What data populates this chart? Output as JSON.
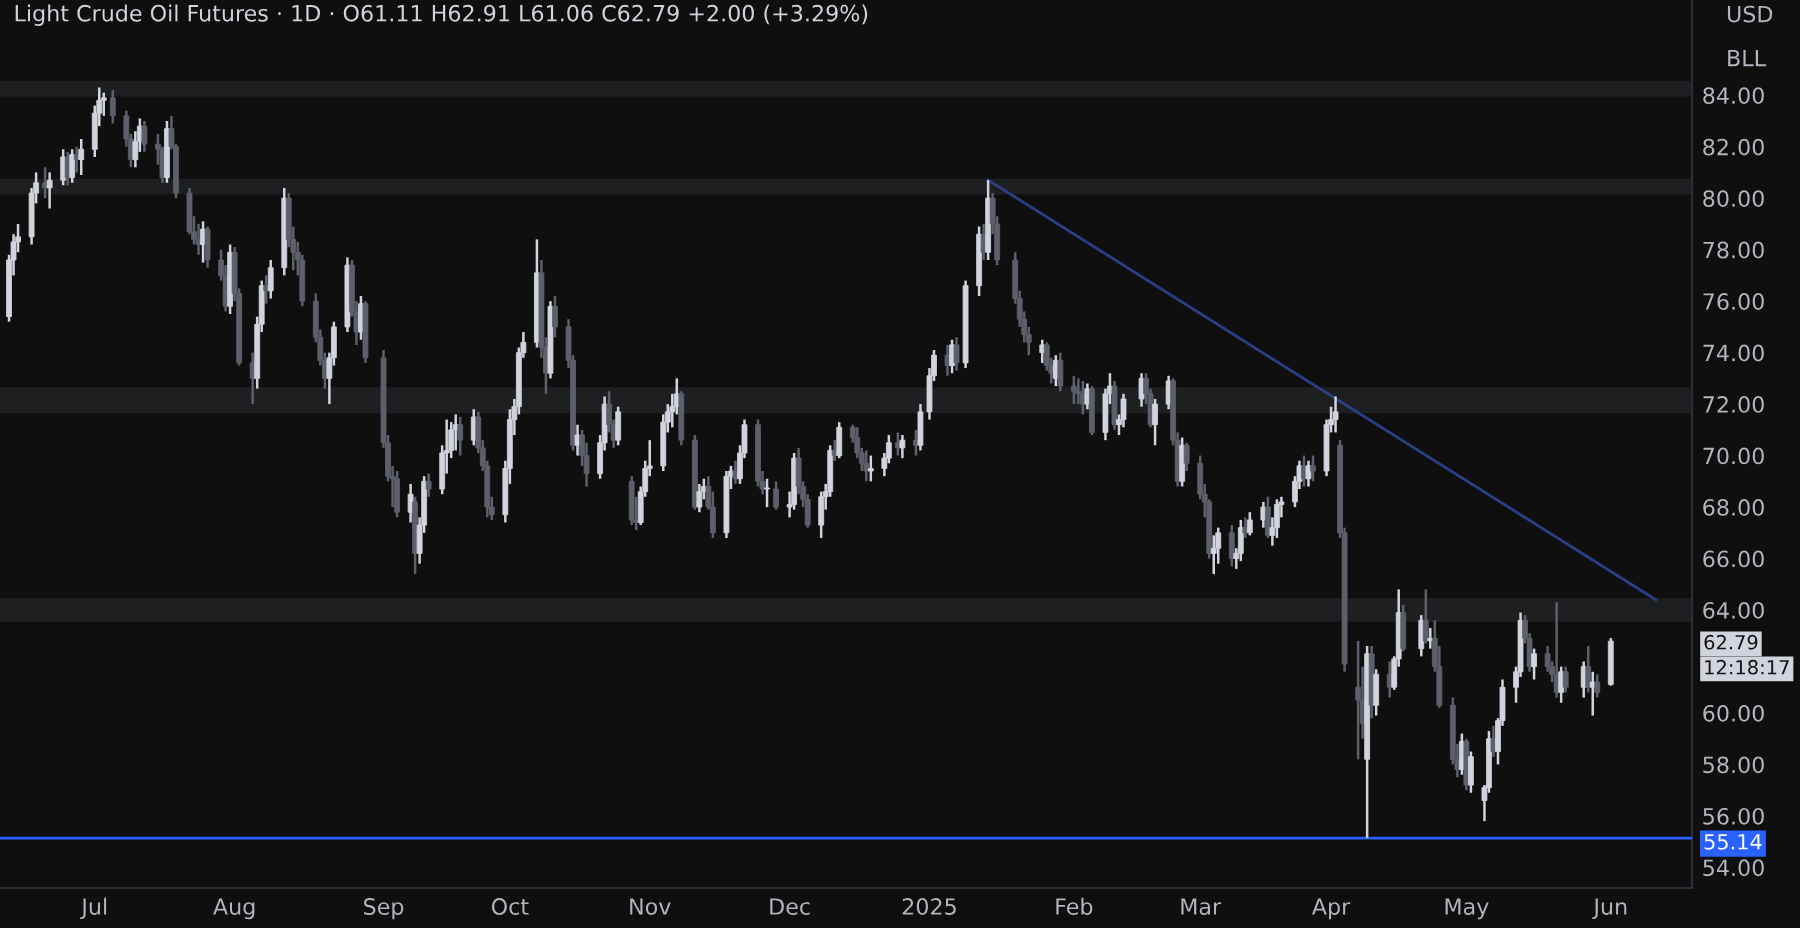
{
  "chart_data": {
    "type": "candlestick",
    "title": "Light Crude Oil Futures · 1D · O61.11 H62.91 L61.06 C62.79 +2.00 (+3.29%)",
    "colors": [
      "#d1d4dc",
      "#d1d4dc",
      "#d1d4dc",
      "#d1d4dc",
      "#d1d4dc",
      "#5d606b",
      "#d1d4dc",
      "#d1d4dc",
      "#5d606b",
      "#d1d4dc",
      "#5d606b",
      "#d1d4dc",
      "#d1d4dc",
      "#d1d4dc",
      "#d1d4dc",
      "#5d606b",
      "#5d606b",
      "#5d606b",
      "#d1d4dc",
      "#d1d4dc",
      "#5d606b",
      "#5d606b",
      "#5d606b",
      "#d1d4dc",
      "#5d606b",
      "#5d606b",
      "#5d606b",
      "#5d606b",
      "#5d606b",
      "#d1d4dc",
      "#5d606b",
      "#5d606b",
      "#5d606b",
      "#d1d4dc",
      "#5d606b",
      "#5d606b",
      "#5d606b",
      "#d1d4dc",
      "#d1d4dc",
      "#5d606b",
      "#d1d4dc",
      "#d1d4dc",
      "#5d606b",
      "#5d606b",
      "#5d606b",
      "#5d606b",
      "#5d606b",
      "#5d606b",
      "#5d606b",
      "#d1d4dc",
      "#d1d4dc",
      "#d1d4dc",
      "#5d606b",
      "#5d606b",
      "#d1d4dc",
      "#5d606b",
      "#5d606b",
      "#5d606b",
      "#5d606b",
      "#5d606b",
      "#d1d4dc",
      "#5d606b",
      "#d1d4dc",
      "#d1d4dc",
      "#5d606b",
      "#d1d4dc",
      "#d1d4dc",
      "#d1d4dc",
      "#d1d4dc",
      "#5d606b",
      "#d1d4dc",
      "#5d606b",
      "#5d606b",
      "#5d606b",
      "#5d606b",
      "#d1d4dc",
      "#d1d4dc",
      "#d1d4dc",
      "#d1d4dc",
      "#d1d4dc",
      "#d1d4dc",
      "#5d606b",
      "#5d606b",
      "#d1d4dc",
      "#5d606b",
      "#5d606b",
      "#5d606b",
      "#d1d4dc",
      "#5d606b",
      "#5d606b",
      "#d1d4dc",
      "#d1d4dc",
      "#5d606b",
      "#5d606b",
      "#d1d4dc",
      "#5d606b",
      "#5d606b",
      "#d1d4dc",
      "#d1d4dc",
      "#d1d4dc",
      "#d1d4dc",
      "#d1d4dc",
      "#d1d4dc",
      "#d1d4dc",
      "#5d606b",
      "#5d606b",
      "#d1d4dc",
      "#d1d4dc",
      "#5d606b",
      "#5d606b",
      "#d1d4dc",
      "#d1d4dc",
      "#5d606b",
      "#d1d4dc",
      "#d1d4dc",
      "#5d606b",
      "#5d606b",
      "#d1d4dc",
      "#5d606b",
      "#d1d4dc",
      "#d1d4dc",
      "#5d606b",
      "#5d606b",
      "#5d606b",
      "#d1d4dc",
      "#d1d4dc",
      "#d1d4dc",
      "#5d606b",
      "#d1d4dc",
      "#5d606b",
      "#5d606b",
      "#5d606b",
      "#5d606b",
      "#d1d4dc",
      "#d1d4dc",
      "#d1d4dc",
      "#5d606b",
      "#d1d4dc",
      "#5d606b",
      "#d1d4dc",
      "#d1d4dc",
      "#d1d4dc",
      "#5d606b",
      "#d1d4dc",
      "#5d606b",
      "#d1d4dc",
      "#d1d4dc",
      "#5d606b",
      "#d1d4dc",
      "#5d606b",
      "#5d606b",
      "#5d606b",
      "#5d606b",
      "#5d606b",
      "#5d606b",
      "#d1d4dc",
      "#5d606b",
      "#5d606b",
      "#d1d4dc",
      "#5d606b",
      "#5d606b",
      "#5d606b",
      "#5d606b",
      "#d1d4dc",
      "#5d606b",
      "#d1d4dc",
      "#d1d4dc",
      "#5d606b",
      "#d1d4dc",
      "#d1d4dc",
      "#d1d4dc",
      "#5d606b",
      "#5d606b",
      "#d1d4dc",
      "#d1d4dc",
      "#5d606b",
      "#5d606b",
      "#d1d4dc",
      "#5d606b",
      "#5d606b",
      "#5d606b",
      "#5d606b",
      "#d1d4dc",
      "#d1d4dc",
      "#5d606b",
      "#d1d4dc",
      "#d1d4dc",
      "#5d606b",
      "#d1d4dc",
      "#d1d4dc",
      "#5d606b",
      "#d1d4dc",
      "#d1d4dc",
      "#d1d4dc",
      "#d1d4dc",
      "#d1d4dc",
      "#5d606b",
      "#d1d4dc",
      "#5d606b",
      "#d1d4dc",
      "#d1d4dc",
      "#d1d4dc",
      "#5d606b",
      "#5d606b",
      "#5d606b",
      "#5d606b",
      "#d1d4dc",
      "#5d606b",
      "#d1d4dc",
      "#5d606b",
      "#d1d4dc",
      "#d1d4dc",
      "#5d606b",
      "#d1d4dc",
      "#5d606b",
      "#d1d4dc",
      "#5d606b",
      "#5d606b",
      "#5d606b",
      "#5d606b",
      "#d1d4dc",
      "#5d606b",
      "#d1d4dc",
      "#d1d4dc",
      "#d1d4dc",
      "#5d606b",
      "#d1d4dc",
      "#d1d4dc",
      "#d1d4dc",
      "#d1d4dc",
      "#5d606b",
      "#5d606b",
      "#d1d4dc",
      "#5d606b",
      "#5d606b",
      "#5d606b",
      "#d1d4dc",
      "#5d606b",
      "#d1d4dc",
      "#5d606b",
      "#d1d4dc",
      "#5d606b",
      "#d1d4dc"
    ],
    "x": [
      "2024-06-12",
      "2024-06-13",
      "2024-06-14",
      "2024-06-17",
      "2024-06-18",
      "2024-06-20",
      "2024-06-21",
      "2024-06-24",
      "2024-06-25",
      "2024-06-26",
      "2024-06-27",
      "2024-06-28",
      "2024-07-01",
      "2024-07-02",
      "2024-07-03",
      "2024-07-05",
      "2024-07-08",
      "2024-07-09",
      "2024-07-10",
      "2024-07-11",
      "2024-07-12",
      "2024-07-15",
      "2024-07-16",
      "2024-07-17",
      "2024-07-18",
      "2024-07-19",
      "2024-07-22",
      "2024-07-23",
      "2024-07-24",
      "2024-07-25",
      "2024-07-26",
      "2024-07-29",
      "2024-07-30",
      "2024-07-31",
      "2024-08-01",
      "2024-08-02",
      "2024-08-05",
      "2024-08-06",
      "2024-08-07",
      "2024-08-08",
      "2024-08-09",
      "2024-08-12",
      "2024-08-13",
      "2024-08-14",
      "2024-08-15",
      "2024-08-16",
      "2024-08-19",
      "2024-08-20",
      "2024-08-21",
      "2024-08-22",
      "2024-08-23",
      "2024-08-26",
      "2024-08-27",
      "2024-08-28",
      "2024-08-29",
      "2024-08-30",
      "2024-09-03",
      "2024-09-04",
      "2024-09-05",
      "2024-09-06",
      "2024-09-09",
      "2024-09-10",
      "2024-09-11",
      "2024-09-12",
      "2024-09-13",
      "2024-09-16",
      "2024-09-17",
      "2024-09-18",
      "2024-09-19",
      "2024-09-20",
      "2024-09-23",
      "2024-09-24",
      "2024-09-25",
      "2024-09-26",
      "2024-09-27",
      "2024-09-30",
      "2024-10-01",
      "2024-10-02",
      "2024-10-03",
      "2024-10-04",
      "2024-10-07",
      "2024-10-08",
      "2024-10-09",
      "2024-10-10",
      "2024-10-11",
      "2024-10-14",
      "2024-10-15",
      "2024-10-16",
      "2024-10-17",
      "2024-10-18",
      "2024-10-21",
      "2024-10-22",
      "2024-10-23",
      "2024-10-24",
      "2024-10-25",
      "2024-10-28",
      "2024-10-29",
      "2024-10-30",
      "2024-10-31",
      "2024-11-01",
      "2024-11-04",
      "2024-11-05",
      "2024-11-06",
      "2024-11-07",
      "2024-11-08",
      "2024-11-11",
      "2024-11-12",
      "2024-11-13",
      "2024-11-14",
      "2024-11-15",
      "2024-11-18",
      "2024-11-19",
      "2024-11-20",
      "2024-11-21",
      "2024-11-22",
      "2024-11-25",
      "2024-11-26",
      "2024-11-27",
      "2024-11-29",
      "2024-12-02",
      "2024-12-03",
      "2024-12-04",
      "2024-12-05",
      "2024-12-06",
      "2024-12-09",
      "2024-12-10",
      "2024-12-11",
      "2024-12-12",
      "2024-12-13",
      "2024-12-16",
      "2024-12-17",
      "2024-12-18",
      "2024-12-19",
      "2024-12-20",
      "2024-12-23",
      "2024-12-24",
      "2024-12-26",
      "2024-12-27",
      "2024-12-30",
      "2024-12-31",
      "2025-01-02",
      "2025-01-03",
      "2025-01-06",
      "2025-01-07",
      "2025-01-08",
      "2025-01-10",
      "2025-01-13",
      "2025-01-14",
      "2025-01-15",
      "2025-01-16",
      "2025-01-17",
      "2025-01-21",
      "2025-01-22",
      "2025-01-23",
      "2025-01-24",
      "2025-01-27",
      "2025-01-28",
      "2025-01-29",
      "2025-01-30",
      "2025-01-31",
      "2025-02-03",
      "2025-02-04",
      "2025-02-05",
      "2025-02-06",
      "2025-02-07",
      "2025-02-10",
      "2025-02-11",
      "2025-02-12",
      "2025-02-13",
      "2025-02-14",
      "2025-02-18",
      "2025-02-19",
      "2025-02-20",
      "2025-02-21",
      "2025-02-24",
      "2025-02-25",
      "2025-02-26",
      "2025-02-27",
      "2025-02-28",
      "2025-03-03",
      "2025-03-04",
      "2025-03-05",
      "2025-03-06",
      "2025-03-07",
      "2025-03-10",
      "2025-03-11",
      "2025-03-12",
      "2025-03-13",
      "2025-03-14",
      "2025-03-17",
      "2025-03-18",
      "2025-03-19",
      "2025-03-20",
      "2025-03-21",
      "2025-03-24",
      "2025-03-25",
      "2025-03-26",
      "2025-03-27",
      "2025-03-28",
      "2025-03-31",
      "2025-04-01",
      "2025-04-02",
      "2025-04-03",
      "2025-04-04",
      "2025-04-07",
      "2025-04-08",
      "2025-04-09",
      "2025-04-10",
      "2025-04-11",
      "2025-04-14",
      "2025-04-15",
      "2025-04-16",
      "2025-04-17",
      "2025-04-21",
      "2025-04-22",
      "2025-04-23",
      "2025-04-24",
      "2025-04-25",
      "2025-04-28",
      "2025-04-29",
      "2025-04-30",
      "2025-05-01",
      "2025-05-02",
      "2025-05-05",
      "2025-05-06",
      "2025-05-07",
      "2025-05-08",
      "2025-05-09",
      "2025-05-12",
      "2025-05-13",
      "2025-05-14",
      "2025-05-15",
      "2025-05-16",
      "2025-05-19",
      "2025-05-20",
      "2025-05-21",
      "2025-05-22",
      "2025-05-23",
      "2025-05-27",
      "2025-05-28",
      "2025-05-29",
      "2025-05-30",
      "2025-06-02"
    ],
    "ohlc": [
      [
        75.4,
        77.8,
        75.2,
        77.6
      ],
      [
        77.6,
        78.6,
        77.0,
        78.3
      ],
      [
        78.3,
        79.0,
        77.9,
        78.5
      ],
      [
        78.5,
        80.4,
        78.2,
        80.2
      ],
      [
        80.2,
        81.0,
        79.8,
        80.6
      ],
      [
        80.6,
        81.2,
        80.0,
        80.4
      ],
      [
        80.4,
        81.0,
        79.6,
        80.7
      ],
      [
        80.7,
        81.9,
        80.5,
        81.6
      ],
      [
        81.6,
        81.8,
        80.5,
        80.8
      ],
      [
        80.8,
        81.9,
        80.6,
        81.7
      ],
      [
        81.7,
        82.0,
        81.0,
        81.5
      ],
      [
        81.5,
        82.3,
        80.9,
        81.9
      ],
      [
        81.9,
        83.6,
        81.6,
        83.3
      ],
      [
        83.3,
        84.3,
        82.8,
        83.8
      ],
      [
        83.8,
        84.1,
        83.2,
        83.9
      ],
      [
        83.9,
        84.2,
        82.9,
        83.2
      ],
      [
        83.2,
        83.4,
        82.0,
        82.3
      ],
      [
        82.3,
        82.5,
        81.2,
        81.5
      ],
      [
        81.5,
        82.6,
        81.2,
        82.2
      ],
      [
        82.2,
        83.1,
        81.8,
        82.8
      ],
      [
        82.8,
        83.0,
        81.8,
        82.1
      ],
      [
        82.1,
        82.5,
        81.3,
        81.9
      ],
      [
        81.9,
        82.0,
        80.6,
        80.8
      ],
      [
        80.8,
        83.0,
        80.6,
        82.7
      ],
      [
        82.7,
        83.2,
        81.9,
        82.0
      ],
      [
        82.0,
        82.1,
        80.0,
        80.2
      ],
      [
        80.2,
        80.4,
        78.6,
        78.7
      ],
      [
        78.7,
        79.3,
        78.2,
        78.4
      ],
      [
        78.4,
        79.0,
        77.8,
        78.2
      ],
      [
        78.2,
        79.1,
        77.5,
        78.8
      ],
      [
        78.8,
        78.9,
        77.3,
        77.6
      ],
      [
        77.6,
        78.0,
        76.8,
        77.0
      ],
      [
        77.0,
        77.4,
        75.6,
        75.8
      ],
      [
        75.8,
        78.2,
        75.5,
        77.9
      ],
      [
        77.9,
        78.1,
        76.0,
        76.3
      ],
      [
        76.3,
        76.5,
        73.5,
        73.6
      ],
      [
        73.6,
        74.0,
        72.0,
        73.0
      ],
      [
        73.0,
        75.4,
        72.6,
        75.1
      ],
      [
        75.1,
        76.8,
        74.8,
        76.6
      ],
      [
        76.6,
        77.0,
        75.9,
        76.4
      ],
      [
        76.4,
        77.6,
        76.1,
        77.3
      ],
      [
        77.3,
        80.4,
        77.0,
        80.0
      ],
      [
        80.0,
        80.2,
        78.1,
        78.4
      ],
      [
        78.4,
        78.9,
        77.2,
        77.9
      ],
      [
        77.9,
        78.3,
        77.0,
        77.6
      ],
      [
        77.6,
        77.8,
        75.8,
        76.0
      ],
      [
        76.0,
        76.3,
        74.4,
        74.6
      ],
      [
        74.6,
        74.9,
        73.5,
        73.7
      ],
      [
        73.7,
        74.0,
        72.6,
        73.0
      ],
      [
        73.0,
        74.0,
        72.0,
        73.8
      ],
      [
        73.8,
        75.2,
        73.5,
        75.0
      ],
      [
        75.0,
        77.7,
        74.8,
        77.4
      ],
      [
        77.4,
        77.6,
        75.4,
        75.6
      ],
      [
        75.6,
        76.0,
        74.3,
        74.8
      ],
      [
        74.8,
        76.2,
        74.5,
        75.9
      ],
      [
        75.9,
        76.0,
        73.6,
        73.8
      ],
      [
        73.8,
        74.1,
        70.3,
        70.5
      ],
      [
        70.5,
        70.8,
        69.0,
        69.2
      ],
      [
        69.2,
        69.6,
        68.0,
        69.1
      ],
      [
        69.1,
        69.4,
        67.6,
        67.8
      ],
      [
        67.8,
        68.9,
        67.4,
        68.5
      ],
      [
        68.2,
        68.4,
        65.4,
        66.2
      ],
      [
        66.2,
        67.6,
        65.8,
        67.3
      ],
      [
        67.3,
        69.2,
        67.0,
        69.0
      ],
      [
        69.0,
        69.3,
        68.4,
        68.7
      ],
      [
        68.7,
        70.4,
        68.5,
        70.1
      ],
      [
        70.1,
        71.4,
        69.3,
        70.2
      ],
      [
        70.2,
        71.3,
        69.9,
        71.0
      ],
      [
        71.0,
        71.6,
        70.2,
        71.2
      ],
      [
        71.2,
        71.5,
        70.0,
        70.6
      ],
      [
        70.6,
        71.8,
        70.4,
        71.5
      ],
      [
        71.5,
        71.7,
        70.1,
        70.3
      ],
      [
        70.3,
        70.6,
        69.4,
        69.6
      ],
      [
        69.6,
        69.8,
        67.6,
        68.0
      ],
      [
        68.0,
        68.4,
        67.5,
        67.7
      ],
      [
        67.7,
        69.8,
        67.4,
        69.5
      ],
      [
        69.5,
        71.8,
        68.9,
        71.4
      ],
      [
        71.4,
        72.2,
        70.8,
        71.9
      ],
      [
        71.9,
        74.2,
        71.6,
        74.0
      ],
      [
        74.0,
        74.8,
        73.8,
        74.4
      ],
      [
        74.4,
        78.4,
        74.2,
        77.1
      ],
      [
        77.1,
        77.6,
        73.8,
        74.2
      ],
      [
        74.2,
        74.6,
        72.4,
        73.2
      ],
      [
        73.2,
        76.0,
        73.0,
        75.8
      ],
      [
        75.8,
        76.2,
        74.6,
        75.0
      ],
      [
        75.0,
        75.3,
        73.4,
        73.7
      ],
      [
        73.7,
        73.9,
        70.2,
        70.4
      ],
      [
        70.4,
        71.2,
        70.0,
        70.8
      ],
      [
        70.8,
        71.0,
        69.6,
        70.0
      ],
      [
        70.0,
        70.5,
        68.8,
        69.3
      ],
      [
        69.3,
        70.8,
        69.1,
        70.5
      ],
      [
        70.5,
        72.3,
        70.2,
        72.0
      ],
      [
        72.0,
        72.5,
        70.9,
        71.2
      ],
      [
        71.2,
        71.4,
        70.3,
        70.6
      ],
      [
        70.6,
        71.9,
        70.4,
        71.7
      ],
      [
        69.0,
        69.2,
        67.3,
        67.5
      ],
      [
        67.5,
        68.4,
        67.1,
        67.4
      ],
      [
        67.4,
        68.8,
        67.3,
        68.6
      ],
      [
        68.6,
        69.8,
        68.4,
        69.5
      ],
      [
        69.5,
        70.6,
        69.2,
        69.6
      ],
      [
        69.6,
        71.6,
        69.4,
        71.3
      ],
      [
        71.3,
        72.0,
        70.9,
        71.7
      ],
      [
        71.7,
        72.4,
        71.1,
        71.9
      ],
      [
        71.9,
        73.0,
        71.6,
        72.4
      ],
      [
        72.4,
        72.5,
        70.4,
        70.6
      ],
      [
        70.6,
        70.8,
        67.9,
        68.0
      ],
      [
        68.0,
        68.9,
        67.8,
        68.6
      ],
      [
        68.6,
        69.1,
        68.3,
        68.8
      ],
      [
        68.8,
        69.2,
        67.9,
        68.0
      ],
      [
        68.0,
        68.6,
        66.8,
        67.0
      ],
      [
        67.0,
        69.4,
        66.8,
        69.2
      ],
      [
        69.2,
        69.6,
        68.7,
        69.4
      ],
      [
        69.4,
        69.8,
        68.9,
        69.1
      ],
      [
        69.1,
        70.4,
        68.9,
        70.1
      ],
      [
        70.1,
        71.4,
        69.9,
        71.2
      ],
      [
        71.2,
        71.4,
        68.8,
        69.0
      ],
      [
        69.0,
        69.4,
        68.5,
        68.7
      ],
      [
        68.7,
        69.1,
        68.0,
        68.7
      ],
      [
        68.7,
        69.0,
        67.9,
        68.0
      ],
      [
        68.0,
        68.6,
        67.6,
        68.1
      ],
      [
        68.1,
        70.1,
        67.9,
        69.9
      ],
      [
        69.9,
        70.3,
        68.5,
        68.8
      ],
      [
        68.8,
        69.0,
        68.0,
        68.3
      ],
      [
        68.3,
        68.5,
        67.2,
        67.3
      ],
      [
        67.3,
        68.6,
        66.8,
        68.4
      ],
      [
        68.4,
        68.9,
        67.9,
        68.6
      ],
      [
        68.6,
        70.4,
        68.4,
        70.2
      ],
      [
        70.2,
        70.6,
        69.8,
        70.0
      ],
      [
        70.0,
        71.3,
        69.9,
        71.1
      ],
      [
        71.1,
        71.2,
        70.5,
        70.7
      ],
      [
        70.7,
        71.1,
        69.9,
        70.1
      ],
      [
        70.1,
        70.3,
        69.4,
        69.7
      ],
      [
        69.7,
        70.2,
        69.0,
        69.4
      ],
      [
        69.4,
        70.0,
        69.0,
        69.5
      ],
      [
        69.5,
        70.1,
        69.2,
        69.9
      ],
      [
        69.9,
        70.8,
        69.7,
        70.5
      ],
      [
        70.5,
        70.9,
        70.0,
        70.3
      ],
      [
        70.3,
        70.8,
        69.9,
        70.6
      ],
      [
        70.6,
        71.0,
        70.0,
        70.4
      ],
      [
        70.4,
        72.0,
        70.2,
        71.7
      ],
      [
        71.7,
        73.4,
        71.4,
        73.1
      ],
      [
        73.1,
        74.1,
        72.9,
        73.9
      ],
      [
        73.9,
        74.3,
        73.1,
        73.5
      ],
      [
        73.5,
        74.5,
        73.2,
        74.3
      ],
      [
        74.3,
        74.6,
        73.3,
        73.6
      ],
      [
        73.6,
        76.8,
        73.4,
        76.6
      ],
      [
        76.6,
        78.9,
        76.2,
        78.6
      ],
      [
        78.6,
        79.0,
        77.6,
        77.9
      ],
      [
        77.9,
        80.7,
        77.6,
        80.0
      ],
      [
        80.0,
        80.2,
        78.6,
        79.0
      ],
      [
        79.0,
        79.3,
        77.4,
        77.6
      ],
      [
        77.6,
        77.9,
        75.9,
        76.1
      ],
      [
        76.1,
        76.4,
        75.0,
        75.3
      ],
      [
        75.3,
        75.6,
        74.4,
        74.7
      ],
      [
        74.7,
        75.0,
        73.9,
        74.4
      ],
      [
        74.0,
        74.5,
        73.6,
        74.3
      ],
      [
        74.3,
        74.4,
        73.3,
        73.5
      ],
      [
        73.5,
        73.8,
        72.8,
        73.2
      ],
      [
        73.0,
        73.9,
        72.7,
        73.7
      ],
      [
        73.7,
        74.0,
        72.5,
        72.7
      ],
      [
        72.7,
        73.1,
        72.0,
        72.5
      ],
      [
        72.5,
        73.0,
        72.0,
        72.4
      ],
      [
        72.4,
        72.9,
        71.6,
        72.0
      ],
      [
        72.0,
        72.8,
        71.8,
        72.6
      ],
      [
        72.6,
        72.7,
        70.8,
        70.9
      ],
      [
        70.9,
        72.6,
        70.6,
        72.4
      ],
      [
        72.4,
        73.2,
        72.0,
        72.7
      ],
      [
        72.7,
        72.9,
        71.0,
        71.2
      ],
      [
        71.2,
        71.6,
        70.8,
        71.4
      ],
      [
        71.4,
        72.4,
        71.1,
        72.2
      ],
      [
        72.2,
        73.2,
        71.9,
        73.0
      ],
      [
        73.0,
        73.2,
        72.0,
        72.4
      ],
      [
        72.4,
        72.6,
        71.1,
        71.2
      ],
      [
        71.2,
        72.2,
        70.4,
        72.0
      ],
      [
        72.0,
        73.1,
        71.8,
        72.9
      ],
      [
        72.9,
        73.0,
        70.4,
        70.6
      ],
      [
        70.6,
        70.9,
        68.8,
        69.0
      ],
      [
        69.0,
        70.7,
        68.8,
        70.4
      ],
      [
        70.4,
        70.5,
        69.4,
        69.7
      ],
      [
        69.7,
        70.0,
        68.3,
        68.5
      ],
      [
        68.5,
        68.9,
        67.6,
        68.2
      ],
      [
        68.2,
        68.3,
        66.0,
        66.2
      ],
      [
        66.2,
        66.9,
        65.4,
        66.4
      ],
      [
        66.4,
        67.2,
        65.8,
        67.0
      ],
      [
        67.0,
        67.3,
        65.7,
        66.0
      ],
      [
        66.0,
        66.4,
        65.6,
        66.2
      ],
      [
        66.2,
        67.5,
        65.9,
        67.2
      ],
      [
        67.2,
        67.6,
        66.8,
        67.0
      ],
      [
        67.0,
        67.8,
        66.9,
        67.5
      ],
      [
        67.5,
        68.2,
        67.2,
        68.0
      ],
      [
        68.0,
        68.4,
        66.8,
        66.9
      ],
      [
        66.9,
        67.6,
        66.5,
        67.2
      ],
      [
        67.2,
        68.3,
        66.8,
        68.1
      ],
      [
        68.1,
        68.4,
        67.6,
        68.2
      ],
      [
        68.2,
        69.2,
        68.0,
        69.0
      ],
      [
        69.0,
        69.8,
        68.7,
        69.6
      ],
      [
        69.6,
        70.0,
        68.8,
        69.1
      ],
      [
        69.1,
        69.8,
        68.8,
        69.6
      ],
      [
        69.6,
        70.0,
        69.0,
        69.4
      ],
      [
        69.4,
        71.4,
        69.2,
        71.2
      ],
      [
        71.2,
        71.9,
        70.9,
        71.4
      ],
      [
        71.4,
        72.3,
        70.9,
        71.7
      ],
      [
        70.4,
        70.6,
        66.8,
        67.0
      ],
      [
        67.0,
        67.2,
        61.6,
        61.9
      ],
      [
        61.0,
        62.8,
        58.2,
        60.5
      ],
      [
        60.5,
        61.8,
        59.0,
        59.6
      ],
      [
        58.2,
        62.6,
        55.14,
        62.3
      ],
      [
        62.3,
        62.6,
        59.8,
        60.3
      ],
      [
        60.3,
        61.7,
        59.9,
        61.5
      ],
      [
        61.5,
        62.0,
        60.6,
        61.0
      ],
      [
        61.0,
        62.2,
        60.9,
        62.1
      ],
      [
        62.1,
        64.8,
        61.8,
        63.9
      ],
      [
        63.9,
        64.2,
        62.4,
        62.5
      ],
      [
        62.5,
        63.8,
        62.2,
        63.6
      ],
      [
        63.6,
        64.8,
        62.7,
        62.8
      ],
      [
        62.8,
        63.3,
        62.5,
        62.9
      ],
      [
        62.9,
        63.6,
        61.6,
        61.8
      ],
      [
        61.8,
        62.6,
        60.2,
        60.3
      ],
      [
        60.3,
        60.6,
        58.0,
        58.2
      ],
      [
        58.2,
        58.8,
        57.5,
        57.8
      ],
      [
        57.8,
        59.2,
        57.6,
        58.9
      ],
      [
        58.9,
        59.0,
        57.0,
        57.2
      ],
      [
        57.2,
        58.5,
        56.9,
        58.3
      ],
      [
        56.6,
        57.2,
        55.8,
        57.1
      ],
      [
        57.1,
        59.3,
        56.9,
        59.0
      ],
      [
        59.0,
        59.5,
        58.3,
        58.5
      ],
      [
        58.5,
        59.8,
        58.0,
        59.7
      ],
      [
        59.7,
        61.3,
        59.5,
        61.0
      ],
      [
        61.0,
        61.8,
        60.4,
        61.6
      ],
      [
        61.6,
        63.9,
        61.4,
        63.6
      ],
      [
        63.6,
        63.8,
        62.7,
        62.9
      ],
      [
        62.9,
        63.1,
        61.6,
        61.8
      ],
      [
        61.8,
        62.5,
        61.3,
        62.3
      ],
      [
        62.3,
        62.6,
        61.6,
        61.8
      ],
      [
        61.8,
        62.0,
        61.2,
        61.5
      ],
      [
        61.5,
        64.3,
        60.6,
        60.8
      ],
      [
        60.8,
        61.8,
        60.4,
        61.6
      ],
      [
        61.6,
        61.8,
        60.8,
        61.0
      ],
      [
        61.0,
        62.0,
        60.6,
        61.8
      ],
      [
        61.8,
        62.6,
        60.8,
        61.0
      ],
      [
        61.0,
        61.6,
        59.9,
        61.2
      ],
      [
        61.2,
        61.5,
        60.6,
        60.8
      ],
      [
        61.11,
        62.91,
        61.06,
        62.79
      ]
    ],
    "series": [
      {
        "type": "line",
        "x": [
          "2025-01-15",
          "2025-06-12"
        ],
        "values": [
          80.7,
          64.4
        ],
        "color": "#2b3f87"
      }
    ],
    "bands": [
      {
        "axis": "y",
        "from": 84.0,
        "to": 84.5,
        "color": "#787b86"
      },
      {
        "axis": "y",
        "from": 80.2,
        "to": 80.7,
        "color": "#787b86"
      },
      {
        "axis": "y",
        "from": 71.7,
        "to": 72.6,
        "color": "#787b86"
      },
      {
        "axis": "y",
        "from": 63.6,
        "to": 64.4,
        "color": "#787b86"
      }
    ],
    "ref_lines": [
      {
        "axis": "y",
        "value": 55.14,
        "label": "55.14",
        "color": "#2962ff"
      }
    ],
    "annotations": [
      "USD",
      "BLL",
      "62.79",
      "12:18:17"
    ],
    "xlim": [
      "2024-06-10",
      "2025-06-20"
    ],
    "xticks": [
      {
        "value": "2024-07-01",
        "label": "Jul"
      },
      {
        "value": "2024-08-01",
        "label": "Aug"
      },
      {
        "value": "2024-09-03",
        "label": "Sep"
      },
      {
        "value": "2024-10-01",
        "label": "Oct"
      },
      {
        "value": "2024-11-01",
        "label": "Nov"
      },
      {
        "value": "2024-12-02",
        "label": "Dec"
      },
      {
        "value": "2025-01-02",
        "label": "2025"
      },
      {
        "value": "2025-02-03",
        "label": "Feb"
      },
      {
        "value": "2025-03-03",
        "label": "Mar"
      },
      {
        "value": "2025-04-01",
        "label": "Apr"
      },
      {
        "value": "2025-05-01",
        "label": "May"
      },
      {
        "value": "2025-06-02",
        "label": "Jun"
      }
    ],
    "ylim": [
      53.2,
      87.7
    ],
    "yticks": [
      {
        "value": 54,
        "label": "54.00"
      },
      {
        "value": 56,
        "label": "56.00"
      },
      {
        "value": 58,
        "label": "58.00"
      },
      {
        "value": 60,
        "label": "60.00"
      },
      {
        "value": 64,
        "label": "64.00"
      },
      {
        "value": 66,
        "label": "66.00"
      },
      {
        "value": 68,
        "label": "68.00"
      },
      {
        "value": 70,
        "label": "70.00"
      },
      {
        "value": 72,
        "label": "72.00"
      },
      {
        "value": 74,
        "label": "74.00"
      },
      {
        "value": 76,
        "label": "76.00"
      },
      {
        "value": 78,
        "label": "78.00"
      },
      {
        "value": 80,
        "label": "80.00"
      },
      {
        "value": 82,
        "label": "82.00"
      },
      {
        "value": 84,
        "label": "84.00"
      }
    ],
    "grid": false,
    "legend": false
  }
}
